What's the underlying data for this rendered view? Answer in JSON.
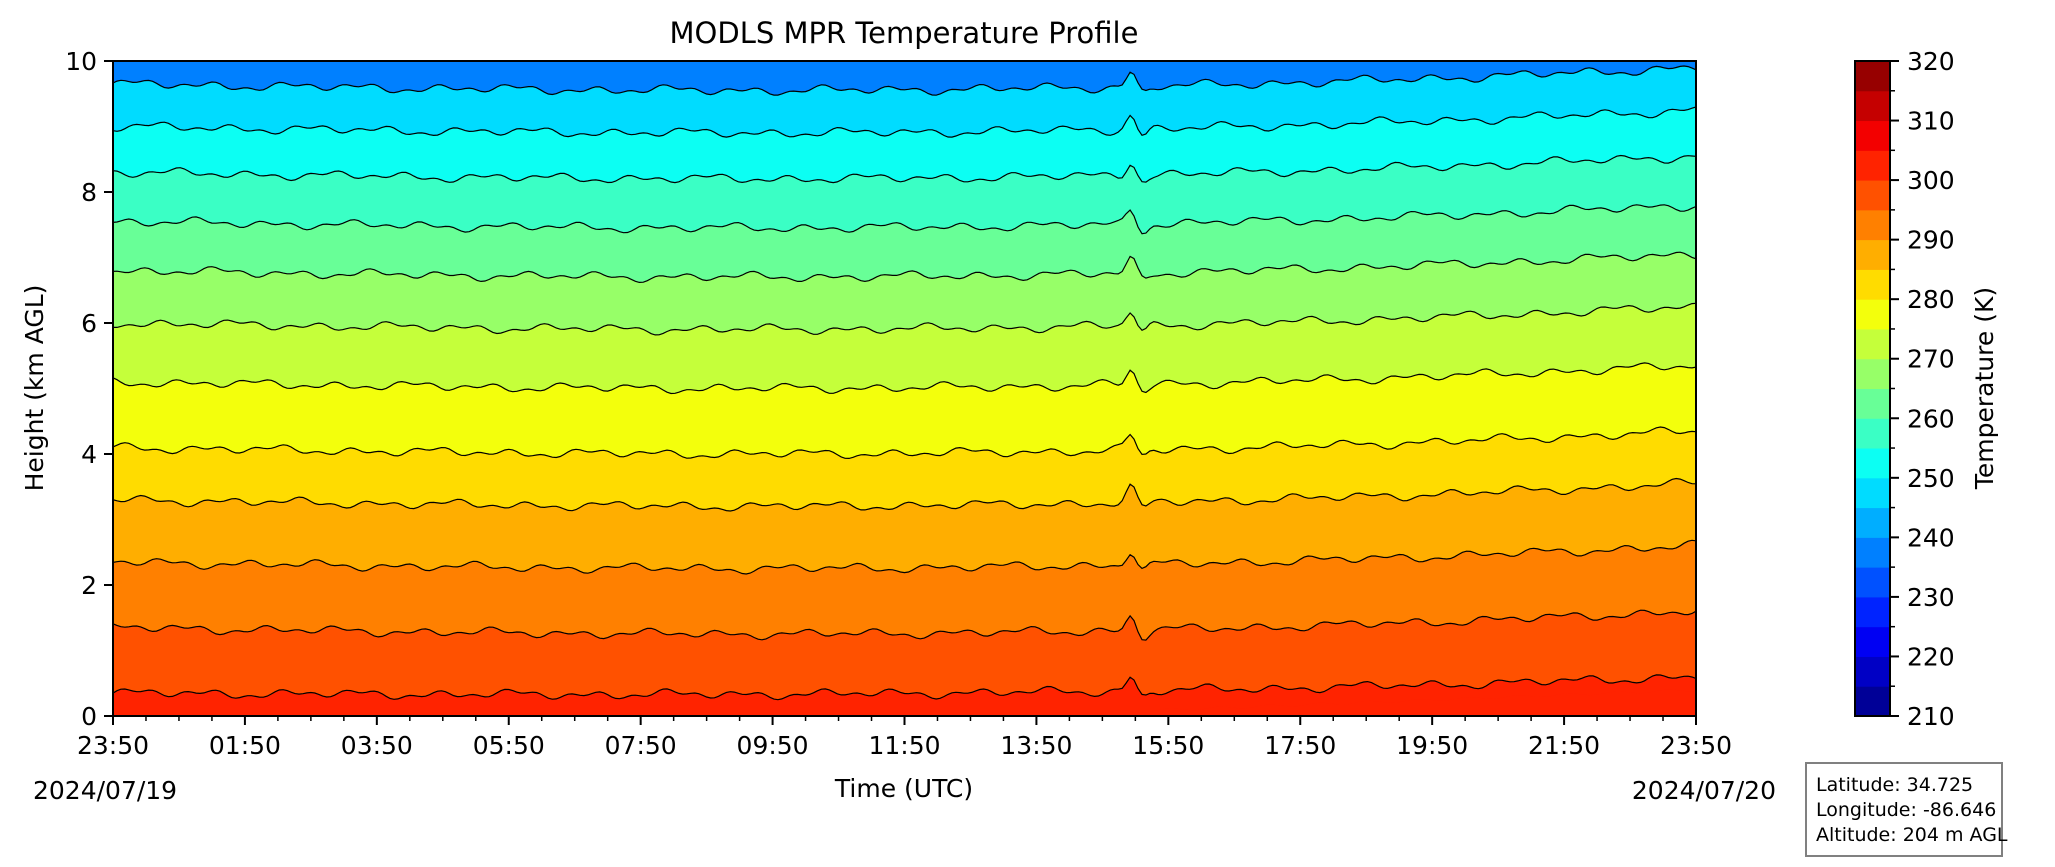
{
  "chart_data": {
    "type": "heatmap",
    "title": "MODLS MPR Temperature Profile",
    "xlabel": "Time (UTC)",
    "ylabel": "Height (km AGL)",
    "x_tick_labels": [
      "23:50",
      "01:50",
      "03:50",
      "05:50",
      "07:50",
      "09:50",
      "11:50",
      "13:50",
      "15:50",
      "17:50",
      "19:50",
      "21:50",
      "23:50"
    ],
    "x_start_date": "2024/07/19",
    "x_end_date": "2024/07/20",
    "y_ticks": [
      0,
      2,
      4,
      6,
      8,
      10
    ],
    "ylim": [
      0,
      10
    ],
    "colorbar": {
      "label": "Temperature (K)",
      "min": 210,
      "max": 320,
      "ticks": [
        210,
        220,
        230,
        240,
        250,
        260,
        270,
        280,
        290,
        300,
        310,
        320
      ],
      "step": 5,
      "colormap": "jet"
    },
    "contour_levels_k": [
      300,
      295,
      290,
      285,
      280,
      275,
      270,
      265,
      260,
      255,
      250,
      245,
      240
    ],
    "approx_contour_heights_km": [
      0.35,
      1.35,
      2.35,
      3.3,
      4.1,
      5.1,
      6.0,
      6.8,
      7.55,
      8.3,
      9.0,
      9.65
    ],
    "surface_temperature_k": 300,
    "lapse_rate_k_per_km": 6.8,
    "disturbance_time": "~15:20"
  },
  "station": {
    "latitude": "Latitude: 34.725",
    "longitude": "Longitude: -86.646",
    "altitude": "Altitude: 204 m AGL"
  }
}
